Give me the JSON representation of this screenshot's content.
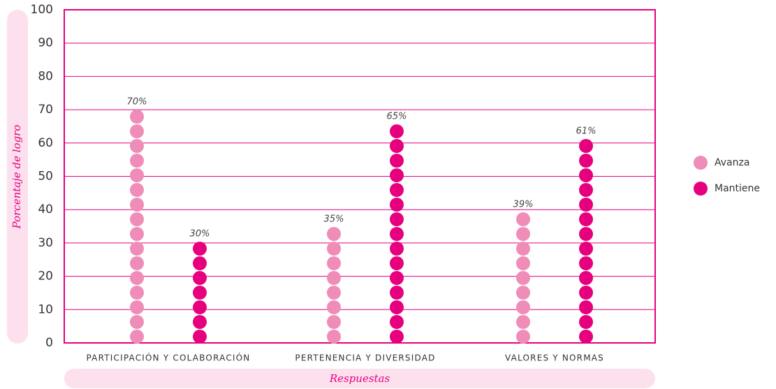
{
  "chart_data": {
    "type": "dot_column",
    "y_label": "Porcentaje de logro",
    "x_label": "Respuestas",
    "categories": [
      "PARTICIPACIÓN Y COLABORACIÓN",
      "PERTENENCIA Y DIVERSIDAD",
      "VALORES Y NORMAS"
    ],
    "series": [
      {
        "name": "Avanza",
        "color": "#f08cb8",
        "values": [
          70,
          35,
          39
        ],
        "value_labels": [
          "70%",
          "35%",
          "39%"
        ]
      },
      {
        "name": "Mantiene",
        "color": "#e6007e",
        "values": [
          30,
          65,
          61
        ],
        "value_labels": [
          "30%",
          "65%",
          "61%"
        ]
      }
    ],
    "ylim": [
      0,
      100
    ],
    "yticks": [
      0,
      10,
      20,
      30,
      40,
      50,
      60,
      70,
      80,
      90,
      100
    ],
    "grid": true,
    "legend": "right"
  }
}
